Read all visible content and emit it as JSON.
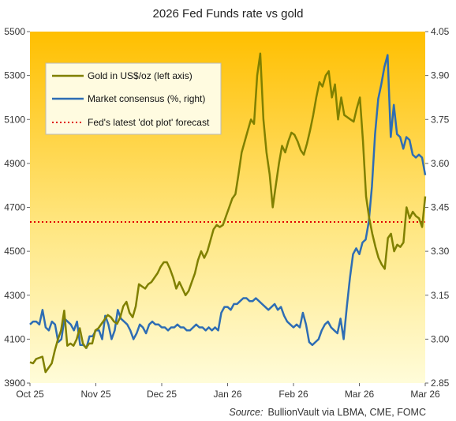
{
  "chart_data": {
    "type": "line",
    "title": "2026 Fed Funds rate vs gold",
    "source_prefix": "Source:",
    "source_text": "BullionVault via LBMA, CME, FOMC",
    "x_tick_labels": [
      "Oct 25",
      "Nov 25",
      "Dec 25",
      "Jan 26",
      "Feb 26",
      "Mar 26",
      "Mar 26"
    ],
    "left_axis": {
      "ylim": [
        3900,
        5500
      ],
      "ticks": [
        "3900",
        "4100",
        "4300",
        "4500",
        "4700",
        "4900",
        "5100",
        "5300",
        "5500"
      ]
    },
    "right_axis": {
      "ylim": [
        2.85,
        4.05
      ],
      "ticks": [
        "2.85",
        "3.00",
        "3.15",
        "3.30",
        "3.45",
        "3.60",
        "3.75",
        "3.90",
        "4.05"
      ]
    },
    "legend_position": "top-left",
    "colors": {
      "gold": "#808000",
      "consensus": "#2e6db4",
      "dot_plot": "#e00000",
      "bg_top": "#ffbf00",
      "bg_bottom": "#fffcd9"
    },
    "series": [
      {
        "name": "Gold in US$/oz (left axis)",
        "axis": "left",
        "values": [
          3995,
          3990,
          4010,
          4015,
          4020,
          3950,
          3970,
          3990,
          4050,
          4100,
          4140,
          4230,
          4070,
          4080,
          4070,
          4100,
          4150,
          4080,
          4060,
          4080,
          4080,
          4140,
          4150,
          4170,
          4190,
          4210,
          4200,
          4180,
          4170,
          4200,
          4250,
          4270,
          4220,
          4200,
          4250,
          4350,
          4340,
          4330,
          4350,
          4360,
          4380,
          4400,
          4430,
          4450,
          4450,
          4420,
          4380,
          4330,
          4360,
          4330,
          4300,
          4320,
          4360,
          4400,
          4460,
          4500,
          4470,
          4500,
          4550,
          4600,
          4620,
          4610,
          4620,
          4660,
          4700,
          4740,
          4760,
          4850,
          4950,
          5000,
          5050,
          5100,
          5080,
          5300,
          5400,
          5100,
          4950,
          4850,
          4700,
          4800,
          4900,
          4980,
          4950,
          5000,
          5040,
          5030,
          5000,
          4960,
          4940,
          4990,
          5050,
          5120,
          5200,
          5270,
          5250,
          5300,
          5320,
          5200,
          5260,
          5100,
          5200,
          5120,
          5110,
          5100,
          5090,
          5150,
          5200,
          5000,
          4750,
          4650,
          4580,
          4520,
          4470,
          4440,
          4420,
          4560,
          4580,
          4500,
          4530,
          4520,
          4540,
          4700,
          4650,
          4680,
          4660,
          4650,
          4610,
          4750
        ]
      },
      {
        "name": "Market consensus (%, right)",
        "axis": "right",
        "values": [
          3.05,
          3.06,
          3.06,
          3.05,
          3.1,
          3.04,
          3.03,
          3.06,
          3.05,
          2.99,
          3.0,
          3.07,
          3.06,
          3.05,
          3.03,
          3.06,
          2.98,
          2.98,
          2.97,
          3.01,
          3.01,
          3.03,
          3.03,
          3.0,
          3.08,
          3.05,
          3.0,
          3.03,
          3.1,
          3.07,
          3.06,
          3.05,
          3.03,
          3.0,
          3.02,
          3.05,
          3.04,
          3.02,
          3.05,
          3.06,
          3.05,
          3.05,
          3.04,
          3.04,
          3.03,
          3.04,
          3.04,
          3.05,
          3.04,
          3.04,
          3.03,
          3.03,
          3.04,
          3.05,
          3.04,
          3.04,
          3.03,
          3.04,
          3.03,
          3.04,
          3.03,
          3.09,
          3.11,
          3.11,
          3.1,
          3.12,
          3.12,
          3.13,
          3.14,
          3.14,
          3.13,
          3.13,
          3.14,
          3.13,
          3.12,
          3.11,
          3.1,
          3.11,
          3.12,
          3.1,
          3.11,
          3.08,
          3.06,
          3.05,
          3.04,
          3.05,
          3.04,
          3.09,
          3.05,
          2.99,
          2.98,
          2.99,
          3.0,
          3.03,
          3.05,
          3.06,
          3.04,
          3.03,
          3.02,
          3.07,
          3.0,
          3.11,
          3.21,
          3.29,
          3.31,
          3.29,
          3.33,
          3.34,
          3.4,
          3.52,
          3.7,
          3.82,
          3.87,
          3.93,
          3.97,
          3.69,
          3.8,
          3.7,
          3.69,
          3.65,
          3.69,
          3.68,
          3.63,
          3.62,
          3.63,
          3.62,
          3.56
        ]
      },
      {
        "name": "Fed's latest 'dot plot' forecast",
        "axis": "right",
        "values": [
          3.4
        ]
      }
    ]
  }
}
